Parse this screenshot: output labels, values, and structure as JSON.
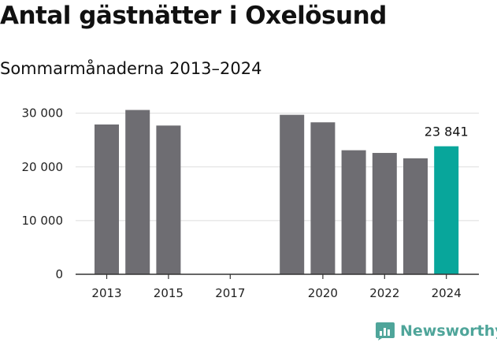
{
  "title": "Antal gästnätter i Oxelösund",
  "subtitle": "Sommarmånaderna 2013–2024",
  "brand": {
    "name": "Newsworthy",
    "icon": "newsworthy-logo-icon"
  },
  "colors": {
    "bar": "#6e6d72",
    "highlight": "#08a69b",
    "grid": "#dddddd",
    "axis": "#333333",
    "brand": "#4fa59a"
  },
  "chart_data": {
    "type": "bar",
    "categories": [
      "2013",
      "2014",
      "2015",
      "2016",
      "2017",
      "2018",
      "2019",
      "2020",
      "2021",
      "2022",
      "2023",
      "2024"
    ],
    "values": [
      27900,
      30600,
      27700,
      null,
      null,
      null,
      29700,
      28300,
      23100,
      22600,
      21600,
      23841
    ],
    "highlight": "2024",
    "data_labels": [
      {
        "category": "2024",
        "text": "23 841"
      }
    ],
    "x_tick_labels": [
      "2013",
      "2015",
      "2017",
      "2020",
      "2022",
      "2024"
    ],
    "y_ticks": [
      0,
      10000,
      20000,
      30000
    ],
    "y_tick_labels": [
      "0",
      "10 000",
      "20 000",
      "30 000"
    ],
    "ylim": [
      0,
      32000
    ],
    "grid": true
  }
}
